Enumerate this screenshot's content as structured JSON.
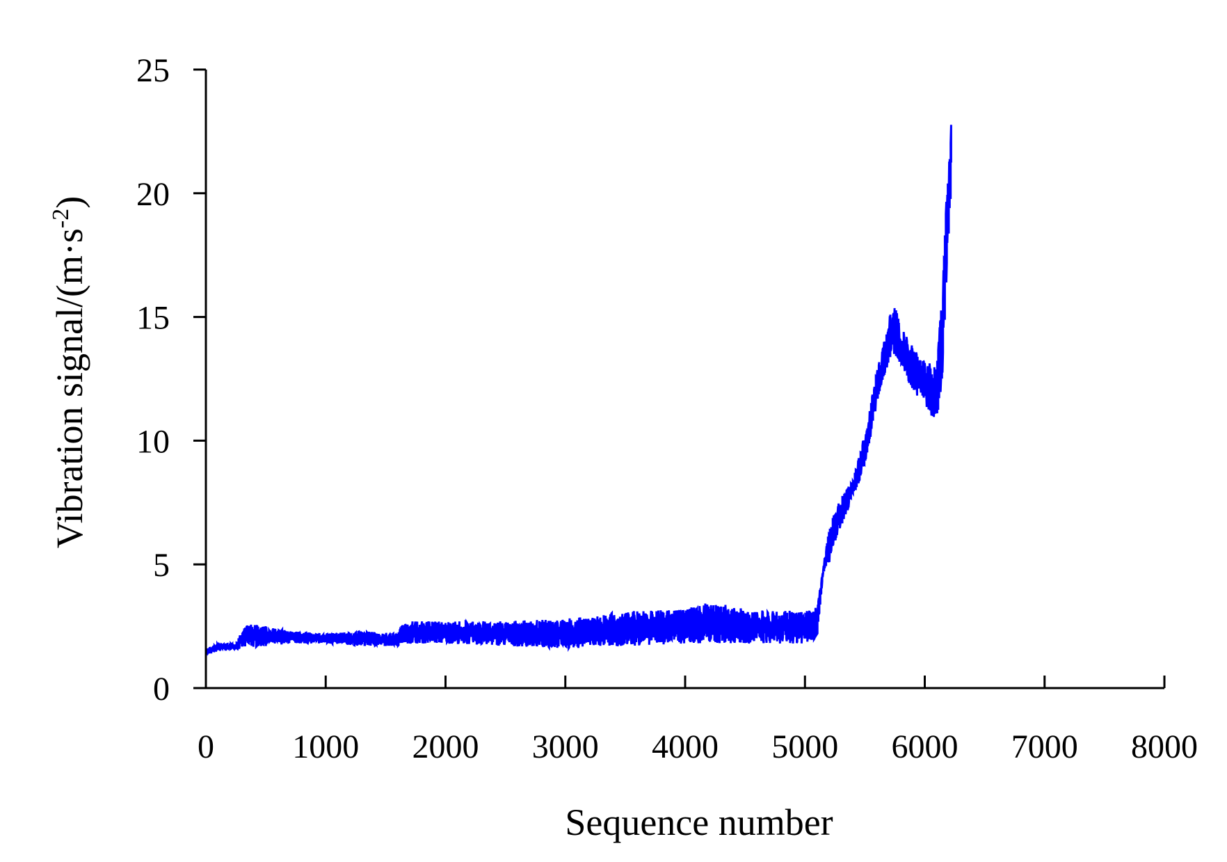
{
  "chart_data": {
    "type": "line",
    "title": "",
    "xlabel": "Sequence number",
    "ylabel_main": "Vibration signal/(m·s",
    "ylabel_sup": "-2",
    "ylabel_close": ")",
    "xlim": [
      0,
      8000
    ],
    "ylim": [
      0,
      25
    ],
    "xticks": [
      0,
      1000,
      2000,
      3000,
      4000,
      5000,
      6000,
      7000,
      8000
    ],
    "yticks": [
      0,
      5,
      10,
      15,
      20,
      25
    ],
    "xtick_labels": [
      "0",
      "1000",
      "2000",
      "3000",
      "4000",
      "5000",
      "6000",
      "7000",
      "8000"
    ],
    "ytick_labels": [
      "0",
      "5",
      "10",
      "15",
      "20",
      "25"
    ],
    "grid": false,
    "legend": "none",
    "series": [
      {
        "color": "#0000ff",
        "envelope": [
          {
            "x": 0,
            "low": 1.3,
            "high": 1.6
          },
          {
            "x": 100,
            "low": 1.5,
            "high": 1.8
          },
          {
            "x": 250,
            "low": 1.6,
            "high": 1.8
          },
          {
            "x": 330,
            "low": 1.6,
            "high": 2.6
          },
          {
            "x": 500,
            "low": 1.7,
            "high": 2.5
          },
          {
            "x": 700,
            "low": 1.8,
            "high": 2.3
          },
          {
            "x": 1000,
            "low": 1.8,
            "high": 2.2
          },
          {
            "x": 1300,
            "low": 1.7,
            "high": 2.3
          },
          {
            "x": 1600,
            "low": 1.7,
            "high": 2.2
          },
          {
            "x": 1650,
            "low": 1.8,
            "high": 2.7
          },
          {
            "x": 2000,
            "low": 1.8,
            "high": 2.7
          },
          {
            "x": 2500,
            "low": 1.7,
            "high": 2.7
          },
          {
            "x": 3000,
            "low": 1.6,
            "high": 2.8
          },
          {
            "x": 3500,
            "low": 1.7,
            "high": 3.1
          },
          {
            "x": 4000,
            "low": 1.8,
            "high": 3.2
          },
          {
            "x": 4200,
            "low": 1.8,
            "high": 3.5
          },
          {
            "x": 4500,
            "low": 1.8,
            "high": 3.2
          },
          {
            "x": 5000,
            "low": 1.8,
            "high": 3.1
          },
          {
            "x": 5100,
            "low": 2.0,
            "high": 3.3
          },
          {
            "x": 5150,
            "low": 4.5,
            "high": 4.8
          },
          {
            "x": 5200,
            "low": 5.0,
            "high": 6.5
          },
          {
            "x": 5300,
            "low": 6.5,
            "high": 7.7
          },
          {
            "x": 5400,
            "low": 7.7,
            "high": 8.4
          },
          {
            "x": 5500,
            "low": 8.8,
            "high": 10.3
          },
          {
            "x": 5600,
            "low": 11.5,
            "high": 12.8
          },
          {
            "x": 5700,
            "low": 13.2,
            "high": 15.0
          },
          {
            "x": 5750,
            "low": 13.5,
            "high": 15.5
          },
          {
            "x": 5800,
            "low": 13.0,
            "high": 14.6
          },
          {
            "x": 5900,
            "low": 12.0,
            "high": 13.8
          },
          {
            "x": 6000,
            "low": 11.5,
            "high": 13.2
          },
          {
            "x": 6050,
            "low": 10.7,
            "high": 13.2
          },
          {
            "x": 6100,
            "low": 10.7,
            "high": 13.0
          },
          {
            "x": 6150,
            "low": 12.5,
            "high": 16.3
          },
          {
            "x": 6180,
            "low": 16.3,
            "high": 19.8
          },
          {
            "x": 6220,
            "low": 19.8,
            "high": 23.4
          }
        ]
      }
    ]
  }
}
